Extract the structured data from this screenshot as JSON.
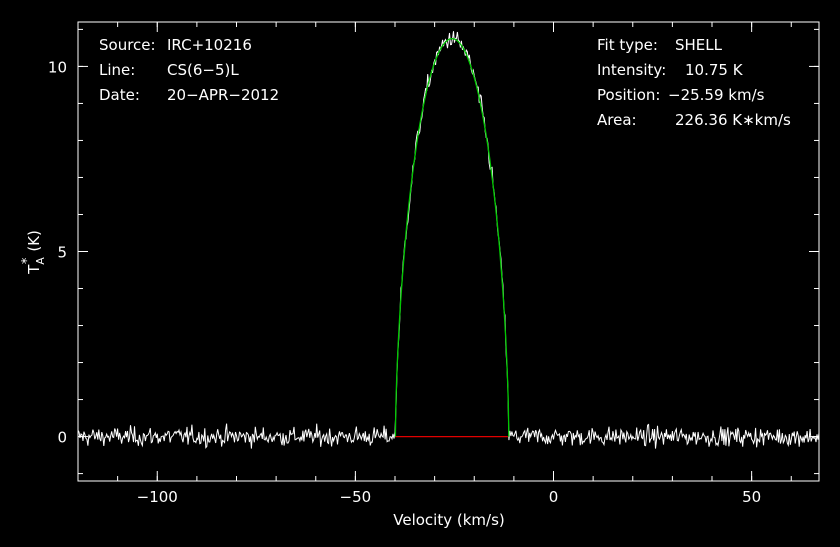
{
  "chart_data": {
    "type": "line",
    "xlabel": "Velocity (km/s)",
    "ylabel_main": "T",
    "ylabel_sub": "A",
    "ylabel_sup": "*",
    "ylabel_unit": "(K)",
    "xlim": [
      -120,
      67
    ],
    "ylim": [
      -1.2,
      11.2
    ],
    "x_ticks": [
      -100,
      -50,
      0,
      50
    ],
    "x_tick_labels": [
      "−100",
      "−50",
      "0",
      "50"
    ],
    "y_ticks": [
      0,
      5,
      10
    ],
    "y_tick_labels": [
      "0",
      "5",
      "10"
    ],
    "x_minor_step": 10,
    "y_minor_step": 1,
    "grid": false,
    "info_left": [
      {
        "key": "Source:",
        "value": "IRC+10216"
      },
      {
        "key": "Line:",
        "value": "CS(6−5)L"
      },
      {
        "key": "Date:",
        "value": "20−APR−2012"
      }
    ],
    "info_right": [
      {
        "key": "Fit type:",
        "value": "SHELL"
      },
      {
        "key": "Intensity:",
        "value": "10.75 K"
      },
      {
        "key": "Position:",
        "value": "−25.59 km/s"
      },
      {
        "key": "Area:",
        "value": "226.36 K∗km/s"
      }
    ],
    "fit": {
      "center": -25.59,
      "peak": 10.75,
      "half_width": 14.3,
      "shape_power": 0.62
    },
    "spectrum": {
      "x_start": -120,
      "x_end": 67,
      "x_step": 0.25,
      "noise_rms": 0.18,
      "edge_low": -40.0,
      "edge_high": -11.5
    },
    "colors": {
      "background": "#000000",
      "axes": "#ffffff",
      "spectrum": "#ffffff",
      "fit": "#00c800",
      "baseline": "#e00000"
    }
  }
}
